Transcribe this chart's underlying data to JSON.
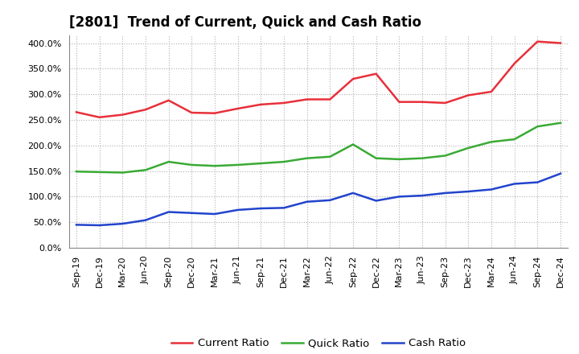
{
  "title": "[2801]  Trend of Current, Quick and Cash Ratio",
  "x_labels": [
    "Sep-19",
    "Dec-19",
    "Mar-20",
    "Jun-20",
    "Sep-20",
    "Dec-20",
    "Mar-21",
    "Jun-21",
    "Sep-21",
    "Dec-21",
    "Mar-22",
    "Jun-22",
    "Sep-22",
    "Dec-22",
    "Mar-23",
    "Jun-23",
    "Sep-23",
    "Dec-23",
    "Mar-24",
    "Jun-24",
    "Sep-24",
    "Dec-24"
  ],
  "current_ratio": [
    265,
    255,
    260,
    270,
    288,
    264,
    263,
    272,
    280,
    283,
    290,
    290,
    330,
    340,
    285,
    285,
    283,
    298,
    305,
    360,
    403,
    400
  ],
  "quick_ratio": [
    149,
    148,
    147,
    152,
    168,
    162,
    160,
    162,
    165,
    168,
    175,
    178,
    202,
    175,
    173,
    175,
    180,
    195,
    207,
    212,
    237,
    244
  ],
  "cash_ratio": [
    45,
    44,
    47,
    54,
    70,
    68,
    66,
    74,
    77,
    78,
    90,
    93,
    107,
    92,
    100,
    102,
    107,
    110,
    114,
    125,
    128,
    145
  ],
  "current_color": "#e8303a",
  "quick_color": "#3aaa35",
  "cash_color": "#2244cc",
  "ylim": [
    0,
    415
  ],
  "yticks": [
    0,
    50,
    100,
    150,
    200,
    250,
    300,
    350,
    400
  ],
  "background_color": "#ffffff",
  "grid_color": "#b0b0b0",
  "line_width": 1.8,
  "title_fontsize": 12,
  "legend_fontsize": 9.5,
  "tick_fontsize": 8
}
